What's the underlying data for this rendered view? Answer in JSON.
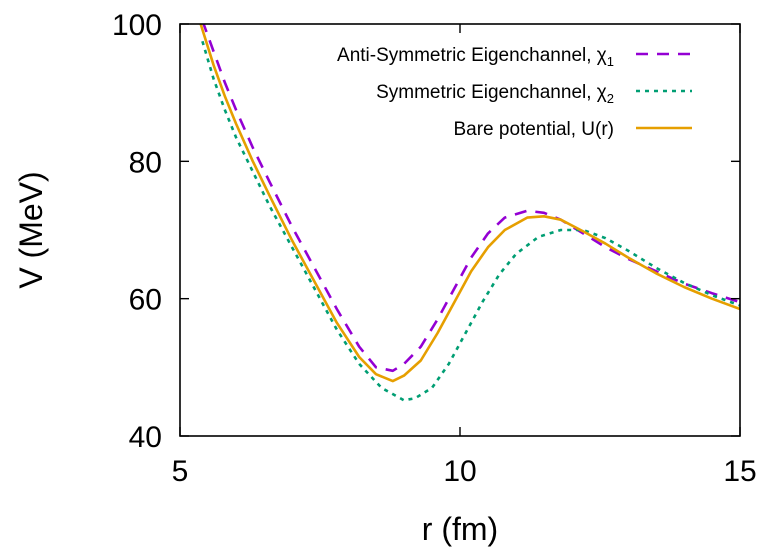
{
  "chart_data": {
    "type": "line",
    "title": "",
    "xlabel": "r (fm)",
    "ylabel": "V (MeV)",
    "xlim": [
      5,
      15
    ],
    "ylim": [
      40,
      100
    ],
    "xticks": [
      5,
      10,
      15
    ],
    "yticks": [
      40,
      60,
      80,
      100
    ],
    "grid": false,
    "legend_position": "top-right",
    "series": [
      {
        "name": "Anti-Symmetric Eigenchannel, χ1",
        "label_main": "Anti-Symmetric Eigenchannel, χ",
        "label_sub": "1",
        "color": "#9400d3",
        "dash": "dashed",
        "x": [
          5.4,
          5.6,
          5.8,
          6.0,
          6.3,
          6.6,
          7.0,
          7.4,
          7.8,
          8.2,
          8.5,
          8.8,
          9.0,
          9.3,
          9.6,
          9.9,
          10.2,
          10.5,
          10.8,
          11.2,
          11.5,
          11.8,
          12.2,
          12.6,
          13.0,
          13.5,
          14.0,
          14.5,
          15.0
        ],
        "y": [
          100.5,
          96,
          91.5,
          87.5,
          82,
          77,
          70.5,
          64.5,
          58.5,
          53,
          50,
          49.5,
          50.5,
          53,
          57,
          61.5,
          66,
          69.5,
          71.8,
          72.8,
          72.5,
          71.5,
          69.5,
          67.5,
          65.8,
          64,
          62.2,
          60.8,
          59.5
        ]
      },
      {
        "name": "Symmetric Eigenchannel, χ2",
        "label_main": "Symmetric Eigenchannel, χ",
        "label_sub": "2",
        "color": "#009e73",
        "dash": "dotted",
        "x": [
          5.4,
          5.6,
          5.8,
          6.0,
          6.3,
          6.6,
          7.0,
          7.4,
          7.8,
          8.2,
          8.6,
          9.0,
          9.2,
          9.5,
          9.8,
          10.1,
          10.4,
          10.7,
          11.0,
          11.4,
          11.8,
          12.2,
          12.6,
          13.0,
          13.5,
          14.0,
          14.5,
          15.0
        ],
        "y": [
          97.5,
          92,
          87.5,
          83.5,
          78.5,
          73.5,
          67.5,
          61.5,
          55.5,
          50.5,
          47,
          45.2,
          45.5,
          47,
          50.5,
          55,
          59.5,
          63.5,
          66.5,
          69,
          70,
          70,
          68.8,
          67,
          64.5,
          62.3,
          60.5,
          59
        ]
      },
      {
        "name": "Bare potential, U(r)",
        "label_main": "Bare potential, U(r)",
        "label_sub": "",
        "color": "#e69f00",
        "dash": "solid",
        "x": [
          5.35,
          5.6,
          5.8,
          6.0,
          6.3,
          6.6,
          7.0,
          7.4,
          7.8,
          8.2,
          8.5,
          8.8,
          9.0,
          9.3,
          9.6,
          9.9,
          10.2,
          10.5,
          10.8,
          11.2,
          11.5,
          11.8,
          12.2,
          12.6,
          13.0,
          13.5,
          14.0,
          14.5,
          15.0
        ],
        "y": [
          100.5,
          94,
          89.5,
          85.5,
          80,
          75,
          68.5,
          62.5,
          56.5,
          51.5,
          49,
          48,
          48.8,
          51,
          55,
          59.5,
          64,
          67.5,
          70,
          71.8,
          72,
          71.5,
          69.8,
          68,
          66,
          63.7,
          61.7,
          60,
          58.5
        ]
      }
    ]
  }
}
